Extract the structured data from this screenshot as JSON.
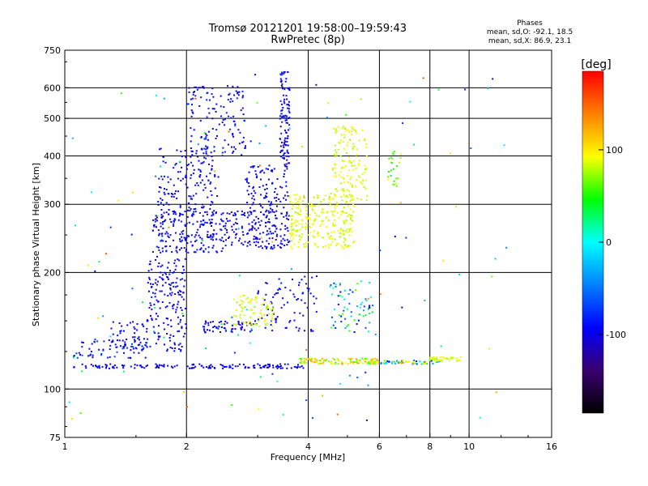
{
  "header": {
    "title": "Tromsø 20121201 19:58:00–19:59:43",
    "subtitle": "RwPretec (8p)"
  },
  "stats": {
    "heading": "Phases",
    "line_o": "mean, sd,O: -92.1, 18.5",
    "line_x": "mean, sd,X: 86.9, 23.1"
  },
  "colorbar": {
    "unit": "[deg]",
    "ticks": [
      {
        "value": 100,
        "label": "100"
      },
      {
        "value": 0,
        "label": "0"
      },
      {
        "value": -100,
        "label": "-100"
      }
    ],
    "range": [
      -185,
      185
    ],
    "stops": [
      "#000000",
      "#3a0070",
      "#0000ff",
      "#0080ff",
      "#00ffff",
      "#00ff00",
      "#ffff00",
      "#ff8000",
      "#ff0000"
    ]
  },
  "chart_data": {
    "type": "scatter",
    "xlabel": "Frequency [MHz]",
    "ylabel": "Stationary phase Virtual Height [km]",
    "x_scale": "log",
    "y_scale": "log",
    "xlim": [
      1,
      16
    ],
    "ylim": [
      75,
      750
    ],
    "x_ticks": [
      {
        "value": 1,
        "label": "1"
      },
      {
        "value": 2,
        "label": "2"
      },
      {
        "value": 4,
        "label": "4"
      },
      {
        "value": 6,
        "label": "6"
      },
      {
        "value": 8,
        "label": "8"
      },
      {
        "value": 10,
        "label": "10"
      },
      {
        "value": 16,
        "label": "16"
      }
    ],
    "y_ticks": [
      {
        "value": 75,
        "label": "75"
      },
      {
        "value": 100,
        "label": "100"
      },
      {
        "value": 200,
        "label": "200"
      },
      {
        "value": 300,
        "label": "300"
      },
      {
        "value": 400,
        "label": "400"
      },
      {
        "value": 500,
        "label": "500"
      },
      {
        "value": 600,
        "label": "600"
      },
      {
        "value": 750,
        "label": "750"
      }
    ],
    "x_grid": [
      2,
      4,
      6,
      8,
      10
    ],
    "y_grid": [
      100,
      200,
      300,
      400,
      500,
      600
    ],
    "grid": true,
    "color_by": "phase",
    "clusters": [
      {
        "f": [
          1.05,
          1.9
        ],
        "h": [
          113,
          116
        ],
        "phase": [
          -110,
          -85
        ],
        "n": 60
      },
      {
        "f": [
          1.05,
          1.6
        ],
        "h": [
          120,
          135
        ],
        "phase": [
          -110,
          -60
        ],
        "n": 70
      },
      {
        "f": [
          1.3,
          2.0
        ],
        "h": [
          125,
          150
        ],
        "phase": [
          -110,
          -85
        ],
        "n": 90
      },
      {
        "f": [
          1.6,
          2.0
        ],
        "h": [
          150,
          220
        ],
        "phase": [
          -110,
          -85
        ],
        "n": 130
      },
      {
        "f": [
          1.65,
          2.5
        ],
        "h": [
          225,
          290
        ],
        "phase": [
          -110,
          -80
        ],
        "n": 220
      },
      {
        "f": [
          1.7,
          2.4
        ],
        "h": [
          290,
          420
        ],
        "phase": [
          -110,
          -80
        ],
        "n": 150
      },
      {
        "f": [
          2.0,
          2.8
        ],
        "h": [
          400,
          610
        ],
        "phase": [
          -110,
          -75
        ],
        "n": 130
      },
      {
        "f": [
          2.5,
          3.6
        ],
        "h": [
          230,
          290
        ],
        "phase": [
          -115,
          -85
        ],
        "n": 180
      },
      {
        "f": [
          2.8,
          3.6
        ],
        "h": [
          290,
          380
        ],
        "phase": [
          -110,
          -85
        ],
        "n": 90
      },
      {
        "f": [
          3.4,
          3.6
        ],
        "h": [
          370,
          660
        ],
        "phase": [
          -120,
          -80
        ],
        "n": 110
      },
      {
        "f": [
          2.0,
          3.9
        ],
        "h": [
          113,
          116
        ],
        "phase": [
          -110,
          -85
        ],
        "n": 90
      },
      {
        "f": [
          3.0,
          4.2
        ],
        "h": [
          140,
          200
        ],
        "phase": [
          -110,
          -85
        ],
        "n": 80
      },
      {
        "f": [
          2.2,
          3.0
        ],
        "h": [
          140,
          150
        ],
        "phase": [
          -110,
          -85
        ],
        "n": 60
      },
      {
        "f": [
          2.6,
          3.3
        ],
        "h": [
          145,
          175
        ],
        "phase": [
          70,
          100
        ],
        "n": 80
      },
      {
        "f": [
          3.6,
          5.2
        ],
        "h": [
          230,
          320
        ],
        "phase": [
          75,
          100
        ],
        "n": 260
      },
      {
        "f": [
          4.6,
          5.6
        ],
        "h": [
          300,
          480
        ],
        "phase": [
          75,
          100
        ],
        "n": 140
      },
      {
        "f": [
          3.8,
          6.0
        ],
        "h": [
          116,
          120
        ],
        "phase": [
          55,
          130
        ],
        "n": 120
      },
      {
        "f": [
          4.5,
          5.8
        ],
        "h": [
          140,
          190
        ],
        "phase": [
          -100,
          60
        ],
        "n": 70
      },
      {
        "f": [
          6.0,
          8.5
        ],
        "h": [
          116,
          119
        ],
        "phase": [
          -100,
          150
        ],
        "n": 60
      },
      {
        "f": [
          6.3,
          6.8
        ],
        "h": [
          330,
          420
        ],
        "phase": [
          40,
          90
        ],
        "n": 25
      },
      {
        "f": [
          8.0,
          9.6
        ],
        "h": [
          118,
          121
        ],
        "phase": [
          75,
          95
        ],
        "n": 40
      },
      {
        "f": [
          1.0,
          12.5
        ],
        "h": [
          80,
          680
        ],
        "phase": [
          -120,
          160
        ],
        "n": 130
      }
    ]
  }
}
